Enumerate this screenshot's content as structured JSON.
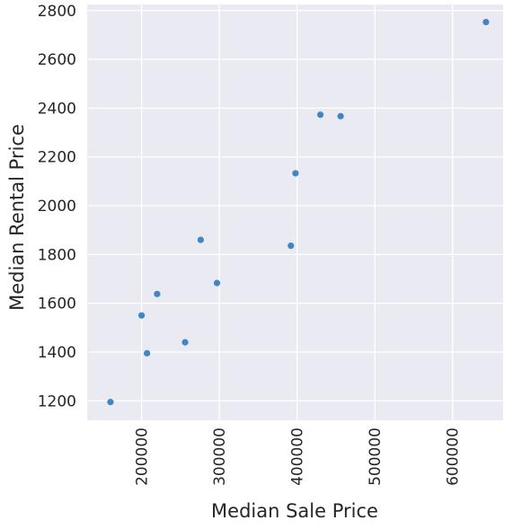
{
  "chart_data": {
    "type": "scatter",
    "title": "",
    "xlabel": "Median Sale Price",
    "ylabel": "Median Rental Price",
    "xlim": [
      130000,
      665000
    ],
    "ylim": [
      1120,
      2825
    ],
    "xticks": [
      200000,
      300000,
      400000,
      500000,
      600000
    ],
    "yticks": [
      1200,
      1400,
      1600,
      1800,
      2000,
      2200,
      2400,
      2600,
      2800
    ],
    "grid": true,
    "point_color": "#3a7fbf",
    "background_color": "#eaeaf2",
    "points": [
      {
        "x": 160000,
        "y": 1195
      },
      {
        "x": 200000,
        "y": 1550
      },
      {
        "x": 207000,
        "y": 1395
      },
      {
        "x": 220000,
        "y": 1638
      },
      {
        "x": 256000,
        "y": 1440
      },
      {
        "x": 276000,
        "y": 1860
      },
      {
        "x": 297000,
        "y": 1683
      },
      {
        "x": 392000,
        "y": 1836
      },
      {
        "x": 398000,
        "y": 2133
      },
      {
        "x": 430000,
        "y": 2373
      },
      {
        "x": 456000,
        "y": 2367
      },
      {
        "x": 643000,
        "y": 2753
      }
    ]
  }
}
